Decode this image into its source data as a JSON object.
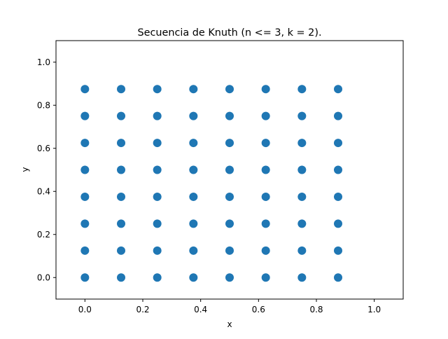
{
  "chart_data": {
    "type": "scatter",
    "title": "Secuencia de Knuth (n <= 3, k = 2).",
    "xlabel": "x",
    "ylabel": "y",
    "xlim": [
      -0.1,
      1.1
    ],
    "ylim": [
      -0.1,
      1.1
    ],
    "xticks": [
      0.0,
      0.2,
      0.4,
      0.6,
      0.8,
      1.0
    ],
    "yticks": [
      0.0,
      0.2,
      0.4,
      0.6,
      0.8,
      1.0
    ],
    "xtick_labels": [
      "0.0",
      "0.2",
      "0.4",
      "0.6",
      "0.8",
      "1.0"
    ],
    "ytick_labels": [
      "0.0",
      "0.2",
      "0.4",
      "0.6",
      "0.8",
      "1.0"
    ],
    "grid": false,
    "legend": "none",
    "marker_color": "#1f77b4",
    "x": [
      0.0,
      0.125,
      0.25,
      0.375,
      0.5,
      0.625,
      0.75,
      0.875
    ],
    "y": [
      0.0,
      0.125,
      0.25,
      0.375,
      0.5,
      0.625,
      0.75,
      0.875
    ],
    "points_note_grid": true
  }
}
